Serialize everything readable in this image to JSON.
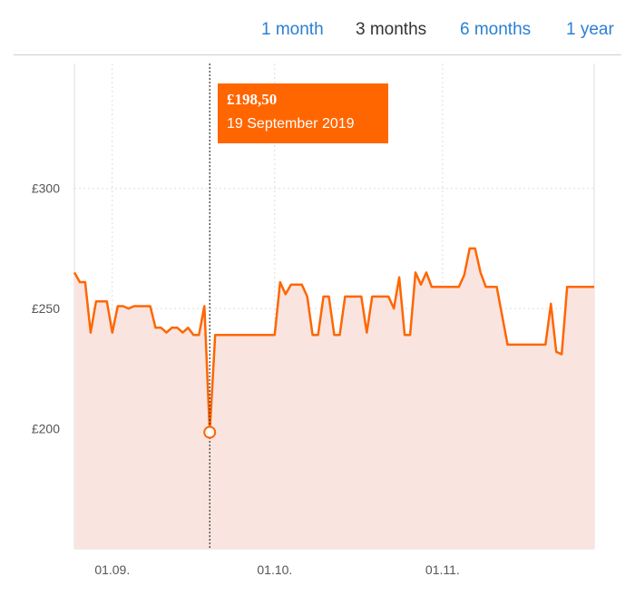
{
  "range_tabs": [
    {
      "label": "1 month",
      "active": false
    },
    {
      "label": "3 months",
      "active": true
    },
    {
      "label": "6 months",
      "active": false
    },
    {
      "label": "1 year",
      "active": false
    }
  ],
  "tooltip": {
    "price": "£198,50",
    "date": "19 September 2019"
  },
  "colors": {
    "line": "#ff6600",
    "fill": "#f9e4e0",
    "link": "#2a7fd4",
    "grid": "#dddddd"
  },
  "chart_data": {
    "type": "area",
    "title": "",
    "xlabel": "",
    "ylabel": "",
    "ylim": [
      150,
      352
    ],
    "y_ticks": [
      {
        "value": 200,
        "label": "£200"
      },
      {
        "value": 250,
        "label": "£250"
      },
      {
        "value": 300,
        "label": "£300"
      }
    ],
    "x_range": [
      "2019-08-25",
      "2019-11-29"
    ],
    "x_ticks": [
      {
        "date": "2019-09-01",
        "label": "01.09."
      },
      {
        "date": "2019-10-01",
        "label": "01.10."
      },
      {
        "date": "2019-11-01",
        "label": "01.11."
      }
    ],
    "grid": true,
    "highlight": {
      "date": "2019-09-19",
      "value": 198.5
    },
    "series": [
      {
        "x": [
          "2019-08-25",
          "2019-08-26",
          "2019-08-27",
          "2019-08-28",
          "2019-08-29",
          "2019-08-30",
          "2019-08-31",
          "2019-09-01",
          "2019-09-02",
          "2019-09-03",
          "2019-09-04",
          "2019-09-05",
          "2019-09-06",
          "2019-09-07",
          "2019-09-08",
          "2019-09-09",
          "2019-09-10",
          "2019-09-11",
          "2019-09-12",
          "2019-09-13",
          "2019-09-14",
          "2019-09-15",
          "2019-09-16",
          "2019-09-17",
          "2019-09-18",
          "2019-09-19",
          "2019-09-20",
          "2019-09-22",
          "2019-09-24",
          "2019-09-26",
          "2019-09-28",
          "2019-09-30",
          "2019-10-01",
          "2019-10-02",
          "2019-10-03",
          "2019-10-04",
          "2019-10-05",
          "2019-10-06",
          "2019-10-07",
          "2019-10-08",
          "2019-10-09",
          "2019-10-10",
          "2019-10-11",
          "2019-10-12",
          "2019-10-13",
          "2019-10-14",
          "2019-10-15",
          "2019-10-16",
          "2019-10-17",
          "2019-10-18",
          "2019-10-19",
          "2019-10-20",
          "2019-10-21",
          "2019-10-22",
          "2019-10-23",
          "2019-10-24",
          "2019-10-25",
          "2019-10-26",
          "2019-10-27",
          "2019-10-28",
          "2019-10-29",
          "2019-10-30",
          "2019-10-31",
          "2019-11-01",
          "2019-11-02",
          "2019-11-03",
          "2019-11-04",
          "2019-11-05",
          "2019-11-06",
          "2019-11-07",
          "2019-11-08",
          "2019-11-09",
          "2019-11-10",
          "2019-11-11",
          "2019-11-13",
          "2019-11-15",
          "2019-11-17",
          "2019-11-19",
          "2019-11-20",
          "2019-11-21",
          "2019-11-22",
          "2019-11-23",
          "2019-11-24",
          "2019-11-26",
          "2019-11-28",
          "2019-11-29"
        ],
        "values": [
          265,
          261,
          261,
          240,
          253,
          253,
          253,
          240,
          251,
          251,
          250,
          251,
          251,
          251,
          251,
          242,
          242,
          240,
          242,
          242,
          240,
          242,
          239,
          239,
          251,
          198.5,
          239,
          239,
          239,
          239,
          239,
          239,
          239,
          261,
          256,
          260,
          260,
          260,
          255,
          239,
          239,
          255,
          255,
          239,
          239,
          255,
          255,
          255,
          255,
          240,
          255,
          255,
          255,
          255,
          250,
          263,
          239,
          239,
          265,
          260,
          265,
          259,
          259,
          259,
          259,
          259,
          259,
          264,
          275,
          275,
          265,
          259,
          259,
          259,
          235,
          235,
          235,
          235,
          235,
          252,
          232,
          231,
          259,
          259,
          259,
          259
        ]
      }
    ]
  }
}
